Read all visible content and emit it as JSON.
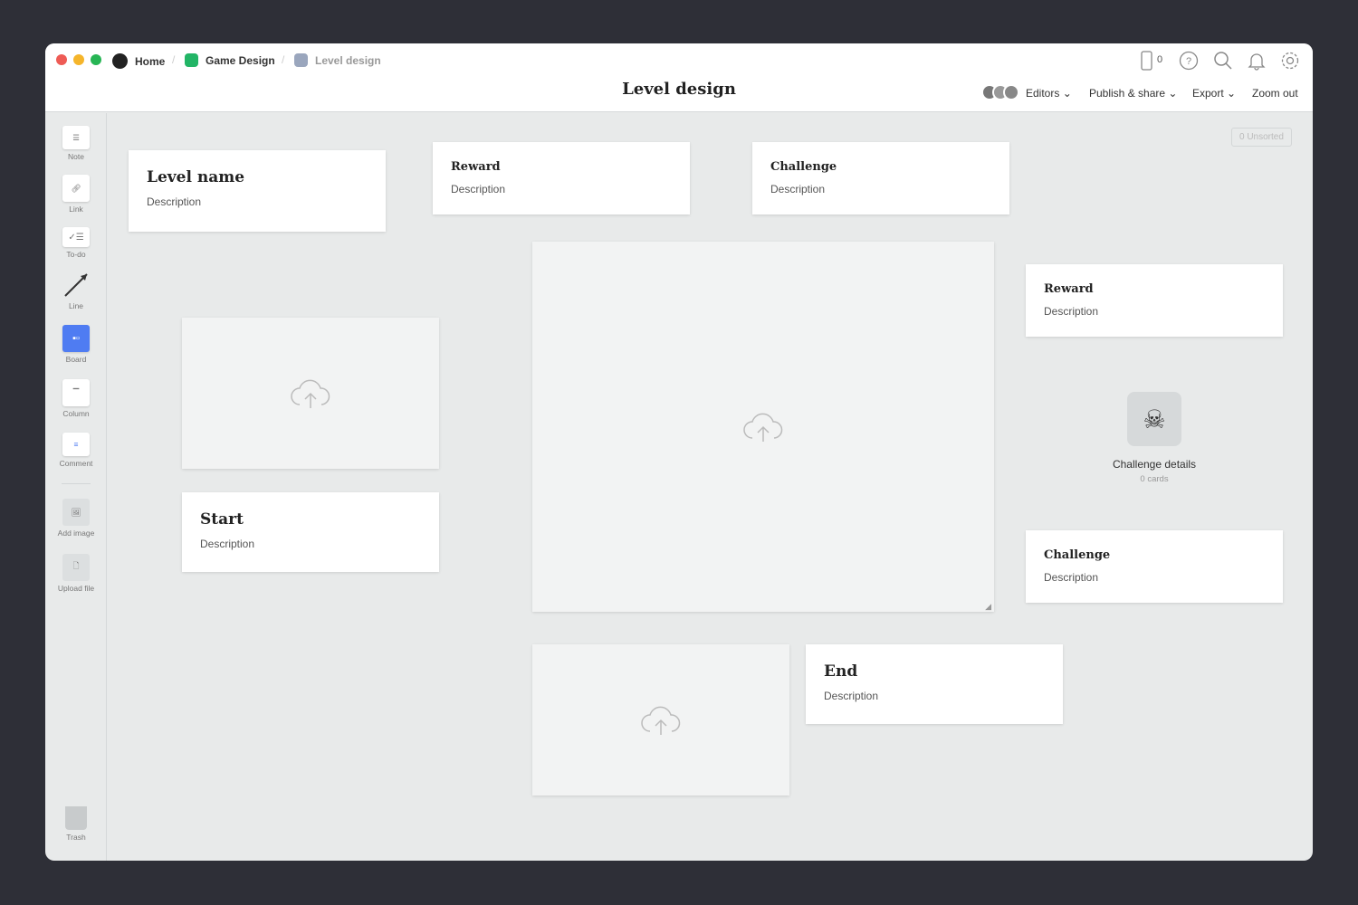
{
  "breadcrumb": {
    "home": "Home",
    "project": "Game Design",
    "current": "Level design",
    "project_color": "#22b566",
    "current_color": "#9aa6bd"
  },
  "header": {
    "title": "Level design",
    "device_count": "0",
    "editors": "Editors",
    "publish": "Publish & share",
    "export": "Export",
    "zoom": "Zoom out"
  },
  "toolbar": {
    "items": [
      "Note",
      "Link",
      "To-do",
      "Line",
      "Board",
      "Column",
      "Comment",
      "Add image",
      "Upload file"
    ],
    "trash": "Trash",
    "accent": "#4f7cf2"
  },
  "canvas": {
    "unsorted": "0 Unsorted",
    "cards": [
      {
        "title": "Level name",
        "desc": "Description"
      },
      {
        "title": "Reward",
        "desc": "Description"
      },
      {
        "title": "Challenge",
        "desc": "Description"
      },
      {
        "title": "Reward",
        "desc": "Description"
      },
      {
        "title": "Start",
        "desc": "Description"
      },
      {
        "title": "Challenge",
        "desc": "Description"
      },
      {
        "title": "End",
        "desc": "Description"
      }
    ],
    "board": {
      "title": "Challenge details",
      "count": "0 cards",
      "icon": "skull-icon"
    }
  }
}
